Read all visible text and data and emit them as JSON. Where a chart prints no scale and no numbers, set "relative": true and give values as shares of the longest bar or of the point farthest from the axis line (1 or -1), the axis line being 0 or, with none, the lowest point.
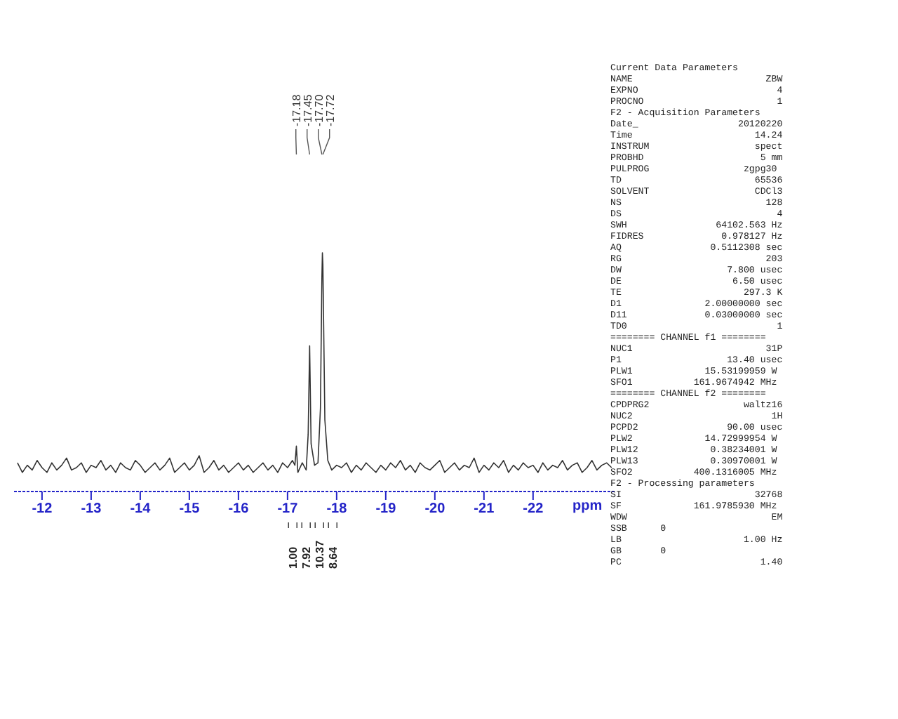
{
  "chart_data": {
    "type": "line",
    "relative": true,
    "xlabel": "ppm",
    "xlim": [
      -11.43,
      -23.66
    ],
    "xticks": [
      -12,
      -13,
      -14,
      -15,
      -16,
      -17,
      -18,
      -19,
      -20,
      -21,
      -22
    ],
    "marker": "none",
    "line_style": "solid",
    "series": [
      {
        "color": "#333333",
        "x": [
          -11.5,
          -11.6,
          -11.7,
          -11.8,
          -11.9,
          -12.0,
          -12.1,
          -12.2,
          -12.3,
          -12.4,
          -12.5,
          -12.6,
          -12.7,
          -12.8,
          -12.9,
          -13.0,
          -13.1,
          -13.2,
          -13.3,
          -13.4,
          -13.5,
          -13.6,
          -13.7,
          -13.8,
          -13.9,
          -14.0,
          -14.1,
          -14.2,
          -14.3,
          -14.4,
          -14.5,
          -14.6,
          -14.7,
          -14.8,
          -14.9,
          -15.0,
          -15.1,
          -15.2,
          -15.3,
          -15.4,
          -15.5,
          -15.6,
          -15.7,
          -15.8,
          -15.9,
          -16.0,
          -16.1,
          -16.2,
          -16.3,
          -16.4,
          -16.5,
          -16.6,
          -16.7,
          -16.8,
          -16.9,
          -17.0,
          -17.1,
          -17.15,
          -17.18,
          -17.21,
          -17.3,
          -17.38,
          -17.42,
          -17.45,
          -17.48,
          -17.55,
          -17.62,
          -17.67,
          -17.7,
          -17.71,
          -17.72,
          -17.76,
          -17.82,
          -17.9,
          -18.0,
          -18.1,
          -18.2,
          -18.3,
          -18.4,
          -18.5,
          -18.6,
          -18.7,
          -18.8,
          -18.9,
          -19.0,
          -19.1,
          -19.2,
          -19.3,
          -19.4,
          -19.5,
          -19.6,
          -19.7,
          -19.8,
          -19.9,
          -20.0,
          -20.1,
          -20.2,
          -20.3,
          -20.4,
          -20.5,
          -20.6,
          -20.7,
          -20.8,
          -20.9,
          -21.0,
          -21.1,
          -21.2,
          -21.3,
          -21.4,
          -21.5,
          -21.6,
          -21.7,
          -21.8,
          -21.9,
          -22.0,
          -22.1,
          -22.2,
          -22.3,
          -22.4,
          -22.5,
          -22.6,
          -22.7,
          -22.8,
          -22.9,
          -23.0,
          -23.1,
          -23.2,
          -23.3,
          -23.4,
          -23.5,
          -23.6
        ],
        "values": [
          0.12,
          0.08,
          0.11,
          0.09,
          0.13,
          0.1,
          0.08,
          0.12,
          0.09,
          0.11,
          0.14,
          0.09,
          0.1,
          0.12,
          0.08,
          0.11,
          0.1,
          0.13,
          0.09,
          0.11,
          0.08,
          0.12,
          0.1,
          0.09,
          0.13,
          0.11,
          0.08,
          0.1,
          0.12,
          0.09,
          0.11,
          0.14,
          0.08,
          0.1,
          0.12,
          0.09,
          0.11,
          0.15,
          0.08,
          0.1,
          0.13,
          0.09,
          0.11,
          0.08,
          0.1,
          0.12,
          0.09,
          0.11,
          0.08,
          0.1,
          0.12,
          0.09,
          0.11,
          0.08,
          0.12,
          0.1,
          0.13,
          0.11,
          0.19,
          0.08,
          0.12,
          0.09,
          0.24,
          0.61,
          0.2,
          0.11,
          0.12,
          0.35,
          0.9,
          1.0,
          0.95,
          0.3,
          0.13,
          0.09,
          0.11,
          0.1,
          0.12,
          0.08,
          0.11,
          0.09,
          0.12,
          0.1,
          0.08,
          0.11,
          0.09,
          0.12,
          0.1,
          0.13,
          0.09,
          0.11,
          0.08,
          0.12,
          0.1,
          0.09,
          0.11,
          0.13,
          0.08,
          0.1,
          0.12,
          0.09,
          0.11,
          0.1,
          0.14,
          0.08,
          0.11,
          0.09,
          0.12,
          0.1,
          0.13,
          0.08,
          0.11,
          0.09,
          0.12,
          0.1,
          0.11,
          0.08,
          0.12,
          0.09,
          0.11,
          0.1,
          0.13,
          0.09,
          0.11,
          0.12,
          0.08,
          0.1,
          0.13,
          0.09,
          0.11,
          0.12,
          0.1
        ]
      }
    ],
    "annotations": [
      {
        "text": "-17.18",
        "x": -17.18
      },
      {
        "text": "-17.45",
        "x": -17.45
      },
      {
        "text": "-17.70",
        "x": -17.7
      },
      {
        "text": "-17.72",
        "x": -17.72
      },
      "1.00",
      "7.92",
      "10.37",
      "8.64",
      "Current Data Parameters",
      "NAME                        ZBW",
      "EXPNO                         4",
      "PROCNO                        1",
      "F2 - Acquisition Parameters",
      "Date_                  20120220",
      "Time                      14.24",
      "INSTRUM                   spect",
      "PROBHD                     5 mm",
      "PULPROG                 zgpg30",
      "TD                        65536",
      "SOLVENT                   CDCl3",
      "NS                          128",
      "DS                            4",
      "SWH                64102.563 Hz",
      "FIDRES              0.978127 Hz",
      "AQ                0.5112308 sec",
      "RG                          203",
      "DW                   7.800 usec",
      "DE                    6.50 usec",
      "TE                      297.3 K",
      "D1               2.00000000 sec",
      "D11              0.03000000 sec",
      "TD0                           1",
      "======== CHANNEL f1 ========",
      "NUC1                        31P",
      "P1                   13.40 usec",
      "PLW1             15.53199959 W",
      "SFO1           161.9674942 MHz",
      "======== CHANNEL f2 ========",
      "CPDPRG2                 waltz16",
      "NUC2                         1H",
      "PCPD2                90.00 usec",
      "PLW2             14.72999954 W",
      "PLW12             0.38234001 W",
      "PLW13             0.30970001 W",
      "SFO2           400.1316005 MHz",
      "F2 - Processing parameters",
      "SI                        32768",
      "SF             161.9785930 MHz",
      "WDW                          EM",
      "SSB      0",
      "LB                      1.00 Hz",
      "GB       0",
      "PC                         1.40"
    ]
  }
}
